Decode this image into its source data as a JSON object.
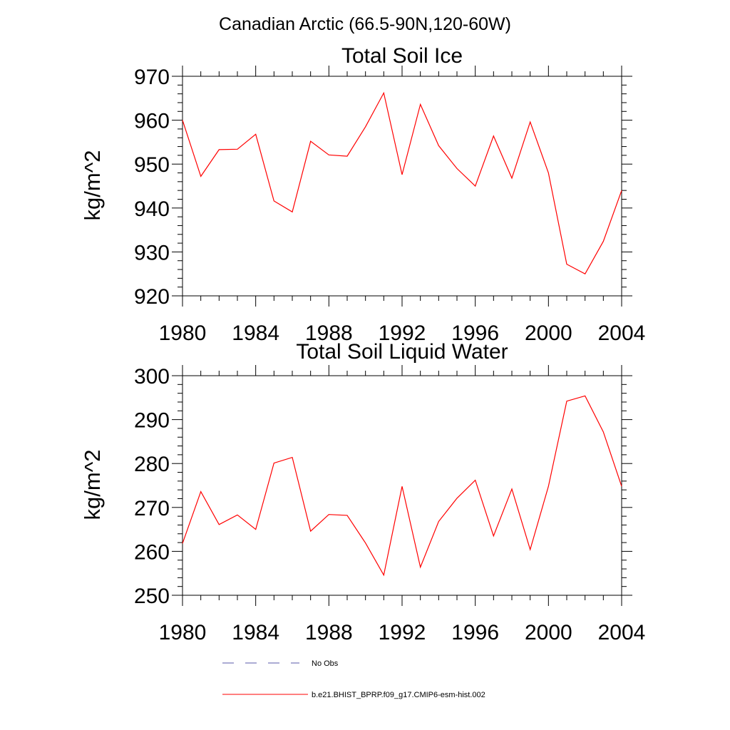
{
  "figure": {
    "title": "Canadian Arctic (66.5-90N,120-60W)"
  },
  "legend": {
    "entries": [
      {
        "label": "No Obs",
        "style": "dashed",
        "color": "#5a5aa8"
      },
      {
        "label": "b.e21.BHIST_BPRP.f09_g17.CMIP6-esm-hist.002",
        "style": "solid",
        "color": "#ff0000"
      }
    ]
  },
  "chart_data": [
    {
      "type": "line",
      "title": "Total Soil Ice",
      "xlabel": "",
      "ylabel": "kg/m^2",
      "xlim": [
        1980,
        2004
      ],
      "ylim": [
        920,
        970
      ],
      "xticks": [
        1980,
        1984,
        1988,
        1992,
        1996,
        2000,
        2004
      ],
      "yticks": [
        920,
        930,
        940,
        950,
        960,
        970
      ],
      "grid": false,
      "series": [
        {
          "name": "b.e21.BHIST_BPRP.f09_g17.CMIP6-esm-hist.002",
          "color": "#ff0000",
          "x": [
            1980,
            1981,
            1982,
            1983,
            1984,
            1985,
            1986,
            1987,
            1988,
            1989,
            1990,
            1991,
            1992,
            1993,
            1994,
            1995,
            1996,
            1997,
            1998,
            1999,
            2000,
            2001,
            2002,
            2003,
            2004
          ],
          "values": [
            960,
            947.2,
            953.3,
            953.4,
            956.8,
            941.6,
            939.1,
            955.2,
            952.1,
            951.8,
            958.5,
            966.2,
            947.6,
            963.6,
            954.2,
            949,
            945,
            956.4,
            946.8,
            959.6,
            948,
            927.2,
            925,
            932.4,
            944
          ]
        }
      ]
    },
    {
      "type": "line",
      "title": "Total Soil Liquid Water",
      "xlabel": "",
      "ylabel": "kg/m^2",
      "xlim": [
        1980,
        2004
      ],
      "ylim": [
        250,
        300
      ],
      "xticks": [
        1980,
        1984,
        1988,
        1992,
        1996,
        2000,
        2004
      ],
      "yticks": [
        250,
        260,
        270,
        280,
        290,
        300
      ],
      "grid": false,
      "series": [
        {
          "name": "b.e21.BHIST_BPRP.f09_g17.CMIP6-esm-hist.002",
          "color": "#ff0000",
          "x": [
            1980,
            1981,
            1982,
            1983,
            1984,
            1985,
            1986,
            1987,
            1988,
            1989,
            1990,
            1991,
            1992,
            1993,
            1994,
            1995,
            1996,
            1997,
            1998,
            1999,
            2000,
            2001,
            2002,
            2003,
            2004
          ],
          "values": [
            261.8,
            273.6,
            266.1,
            268.3,
            265,
            280.1,
            281.4,
            264.6,
            268.4,
            268.2,
            261.9,
            254.6,
            274.8,
            256.4,
            266.8,
            272.1,
            276.2,
            263.5,
            274.2,
            260.4,
            274.8,
            294.2,
            295.4,
            287.2,
            274.8
          ]
        }
      ]
    }
  ]
}
